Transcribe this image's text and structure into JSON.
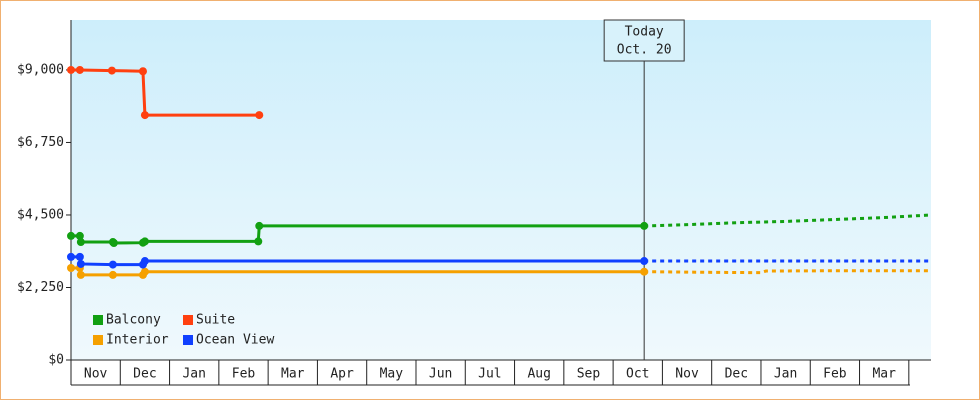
{
  "chart_data": {
    "type": "line",
    "xlim": [
      0,
      17.45
    ],
    "xticks": [
      {
        "value": 0,
        "label": "Nov"
      },
      {
        "value": 1,
        "label": "Dec"
      },
      {
        "value": 2,
        "label": "Jan"
      },
      {
        "value": 3,
        "label": "Feb"
      },
      {
        "value": 4,
        "label": "Mar"
      },
      {
        "value": 5,
        "label": "Apr"
      },
      {
        "value": 6,
        "label": "May"
      },
      {
        "value": 7,
        "label": "Jun"
      },
      {
        "value": 8,
        "label": "Jul"
      },
      {
        "value": 9,
        "label": "Aug"
      },
      {
        "value": 10,
        "label": "Sep"
      },
      {
        "value": 11,
        "label": "Oct"
      },
      {
        "value": 12,
        "label": "Nov"
      },
      {
        "value": 13,
        "label": "Dec"
      },
      {
        "value": 14,
        "label": "Jan"
      },
      {
        "value": 15,
        "label": "Feb"
      },
      {
        "value": 16,
        "label": "Mar"
      }
    ],
    "ylim": [
      0,
      10550
    ],
    "yticks": [
      {
        "value": 0,
        "label": "$0"
      },
      {
        "value": 2250,
        "label": "$2,250"
      },
      {
        "value": 4500,
        "label": "$4,500"
      },
      {
        "value": 6750,
        "label": "$6,750"
      },
      {
        "value": 9000,
        "label": "$9,000"
      }
    ],
    "annotation": {
      "x": 11.63,
      "lines": [
        "Today",
        "Oct. 20"
      ]
    },
    "legend": "bottom-left",
    "series": [
      {
        "name": "Balcony",
        "color": "#12a012",
        "x": [
          0,
          0.18,
          0.2,
          0.85,
          0.87,
          1.46,
          1.5,
          3.8,
          3.82,
          11.63
        ],
        "values": [
          3850,
          3850,
          3660,
          3660,
          3630,
          3640,
          3680,
          3680,
          4160,
          4160
        ],
        "forecast_x": [
          11.63,
          12.5,
          13.5,
          14.5,
          15.5,
          16.5,
          17.45
        ],
        "forecast_values": [
          4160,
          4200,
          4260,
          4300,
          4360,
          4420,
          4500
        ]
      },
      {
        "name": "Suite",
        "color": "#ff4010",
        "x": [
          0,
          0.18,
          0.83,
          1.46,
          1.5,
          3.82
        ],
        "values": [
          9000,
          9000,
          8980,
          8960,
          7600,
          7600
        ]
      },
      {
        "name": "Interior",
        "color": "#f5a000",
        "x": [
          0,
          0.18,
          0.2,
          0.85,
          1.46,
          1.5,
          11.63
        ],
        "values": [
          2855,
          2855,
          2640,
          2640,
          2640,
          2740,
          2740
        ],
        "forecast_x": [
          11.63,
          13,
          14,
          14.1,
          15.5,
          17.45
        ],
        "forecast_values": [
          2740,
          2720,
          2710,
          2760,
          2770,
          2770
        ]
      },
      {
        "name": "Ocean View",
        "color": "#1040ff",
        "x": [
          0,
          0.18,
          0.2,
          0.85,
          1.46,
          1.5,
          11.63
        ],
        "values": [
          3200,
          3200,
          2980,
          2960,
          2960,
          3070,
          3070
        ],
        "forecast_x": [
          11.63,
          17.45
        ],
        "forecast_values": [
          3070,
          3070
        ]
      }
    ]
  }
}
